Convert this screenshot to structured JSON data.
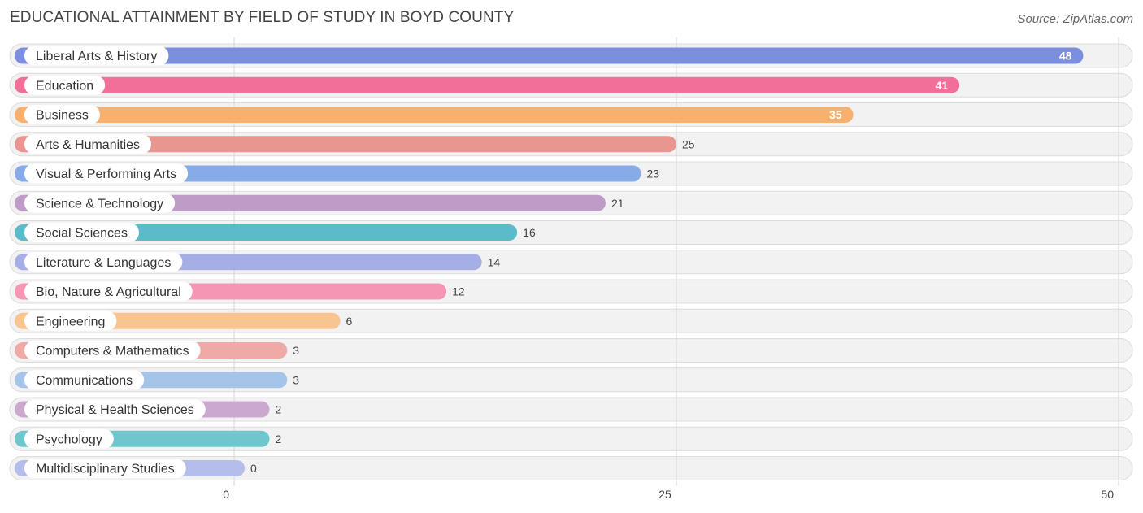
{
  "chart_data": {
    "type": "bar",
    "orientation": "horizontal",
    "title": "EDUCATIONAL ATTAINMENT BY FIELD OF STUDY IN BOYD COUNTY",
    "source": "Source: ZipAtlas.com",
    "xlabel": "",
    "ylabel": "",
    "xlim": [
      0,
      50
    ],
    "ticks": [
      0,
      25,
      50
    ],
    "grid": true,
    "categories": [
      "Liberal Arts & History",
      "Education",
      "Business",
      "Arts & Humanities",
      "Visual & Performing Arts",
      "Science & Technology",
      "Social Sciences",
      "Literature & Languages",
      "Bio, Nature & Agricultural",
      "Engineering",
      "Computers & Mathematics",
      "Communications",
      "Physical & Health Sciences",
      "Psychology",
      "Multidisciplinary Studies"
    ],
    "values": [
      48,
      41,
      35,
      25,
      23,
      21,
      16,
      14,
      12,
      6,
      3,
      3,
      2,
      2,
      0
    ],
    "colors": [
      "#7b8fde",
      "#f26f9a",
      "#f8b06f",
      "#ea9690",
      "#86abe6",
      "#bf9bc8",
      "#5bbcc9",
      "#a6aee6",
      "#f596b5",
      "#f8c590",
      "#f0aaa6",
      "#a4c4ea",
      "#cba9cf",
      "#70c6cd",
      "#b5bdea"
    ]
  }
}
